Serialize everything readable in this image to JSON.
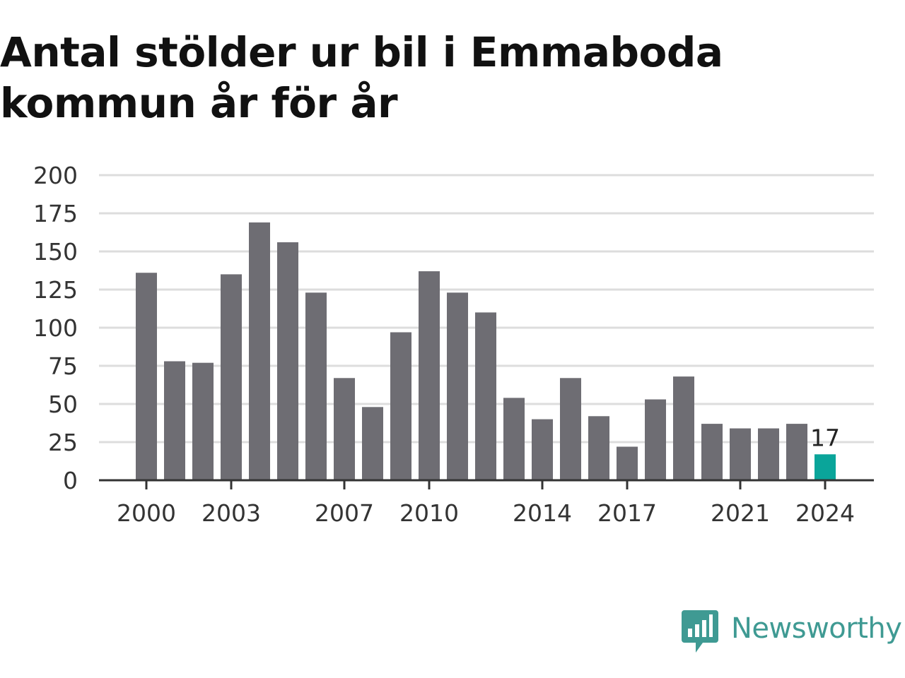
{
  "chart_data": {
    "type": "bar",
    "title": "Antal stölder ur bil i Emmaboda kommun år för år",
    "xlabel": "",
    "ylabel": "",
    "categories": [
      "2000",
      "2001",
      "2002",
      "2003",
      "2004",
      "2005",
      "2006",
      "2007",
      "2008",
      "2009",
      "2010",
      "2011",
      "2012",
      "2013",
      "2014",
      "2015",
      "2016",
      "2017",
      "2018",
      "2019",
      "2020",
      "2021",
      "2022",
      "2023",
      "2024"
    ],
    "values": [
      136,
      78,
      77,
      135,
      169,
      156,
      123,
      67,
      48,
      97,
      137,
      123,
      110,
      54,
      40,
      67,
      42,
      22,
      53,
      68,
      37,
      34,
      34,
      37,
      17
    ],
    "x_tick_labels": [
      "2000",
      "2003",
      "2007",
      "2010",
      "2014",
      "2017",
      "2021",
      "2024"
    ],
    "ylim": [
      0,
      200
    ],
    "y_ticks": [
      0,
      25,
      50,
      75,
      100,
      125,
      150,
      175,
      200
    ],
    "grid": true,
    "legend": "none",
    "highlight": {
      "category": "2024",
      "label": "17"
    },
    "colors": {
      "bar": "#6e6d73",
      "highlight": "#0aa59a",
      "grid": "#dddddd",
      "axis": "#333333"
    }
  },
  "branding": {
    "logo_text": "Newsworthy",
    "logo_icon": "bar-chart-speech-bubble-icon",
    "color": "#3f9a93"
  }
}
